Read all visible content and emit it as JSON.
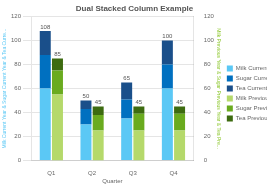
{
  "chart_data": {
    "type": "bar",
    "title": "Dual Stacked Column Example",
    "xlabel": "Quarter",
    "ylabel": "Milk Current Year & Sugar Current Year & Tea Curre...",
    "y2label": "Milk Previous Year & Sugar Previous Year & Tea Pre...",
    "categories": [
      "Q1",
      "Q2",
      "Q3",
      "Q4"
    ],
    "series": [
      {
        "name": "Milk Current Year",
        "color": "#5bc8f5",
        "values": [
          60,
          30,
          35,
          60
        ],
        "axis": "y"
      },
      {
        "name": "Sugar Current Year",
        "color": "#0070c0",
        "values": [
          28,
          13,
          16,
          20
        ],
        "axis": "y"
      },
      {
        "name": "Tea Current Year",
        "color": "#1a4f8a",
        "values": [
          20,
          7,
          14,
          20
        ],
        "axis": "y",
        "totals": [
          108,
          50,
          65,
          100
        ]
      },
      {
        "name": "Milk Previous Year",
        "color": "#b5d96b",
        "values": [
          55,
          25,
          25,
          25
        ],
        "axis": "y2"
      },
      {
        "name": "Sugar Previous Year",
        "color": "#6aab1f",
        "values": [
          20,
          13,
          14,
          14
        ],
        "axis": "y2"
      },
      {
        "name": "Tea Previous Year",
        "color": "#3d6b10",
        "values": [
          10,
          7,
          6,
          6
        ],
        "axis": "y2",
        "totals": [
          85,
          45,
          45,
          45
        ]
      }
    ],
    "ylim": [
      0,
      120
    ],
    "yticks": [
      0,
      20,
      40,
      60,
      80,
      100,
      120
    ],
    "y2lim": [
      0,
      120
    ],
    "y2ticks": [
      0,
      20,
      40,
      60,
      80,
      100,
      120
    ],
    "stacked": true,
    "grid": true,
    "legend": "right"
  }
}
